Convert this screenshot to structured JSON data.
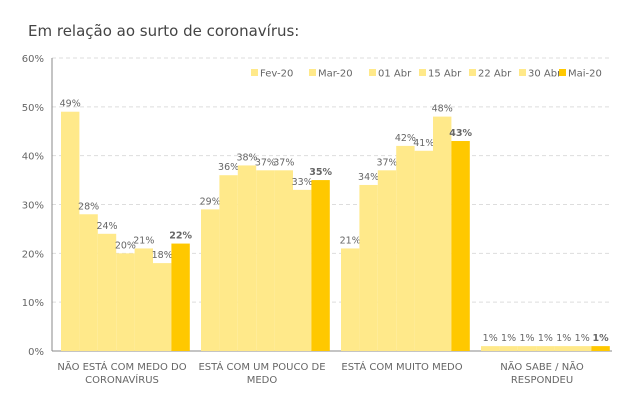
{
  "title": "Em relação ao surto de coronavírus:",
  "colors": {
    "light": "#FFE98A",
    "last": "#FFC800",
    "grid": "#DDDDDD",
    "axis": "#888888",
    "label": "#666666"
  },
  "chart_data": {
    "type": "bar",
    "categories": [
      [
        "NÃO ESTÁ COM MEDO DO",
        "CORONAVÍRUS"
      ],
      [
        "ESTÁ COM UM POUCO DE",
        "MEDO"
      ],
      [
        "ESTÁ COM MUITO MEDO"
      ],
      [
        "NÃO SABE / NÃO",
        "RESPONDEU"
      ]
    ],
    "series": [
      {
        "name": "Fev-20",
        "values": [
          49,
          29,
          21,
          1
        ],
        "labels": [
          "49%",
          "29%",
          "21%",
          "1%"
        ]
      },
      {
        "name": "Mar-20",
        "values": [
          28,
          36,
          34,
          1
        ],
        "labels": [
          "28%",
          "36%",
          "34%",
          "1%"
        ]
      },
      {
        "name": "01 Abr",
        "values": [
          24,
          38,
          37,
          1
        ],
        "labels": [
          "24%",
          "38%",
          "37%",
          "1%"
        ]
      },
      {
        "name": "15 Abr",
        "values": [
          20,
          37,
          42,
          1
        ],
        "labels": [
          "20%",
          "37%",
          "42%",
          "1%"
        ]
      },
      {
        "name": "22 Abr",
        "values": [
          21,
          37,
          41,
          1
        ],
        "labels": [
          "21%",
          "37%",
          "41%",
          "1%"
        ]
      },
      {
        "name": "30 Abr",
        "values": [
          18,
          33,
          48,
          1
        ],
        "labels": [
          "18%",
          "33%",
          "48%",
          "1%"
        ]
      },
      {
        "name": "Mai-20",
        "values": [
          22,
          35,
          43,
          1
        ],
        "labels": [
          "22%",
          "35%",
          "43%",
          "1%"
        ]
      }
    ],
    "yticks": [
      "0%",
      "10%",
      "20%",
      "30%",
      "40%",
      "50%",
      "60%"
    ],
    "ylim": [
      0,
      60
    ],
    "grid": true,
    "legend": "top-right"
  }
}
